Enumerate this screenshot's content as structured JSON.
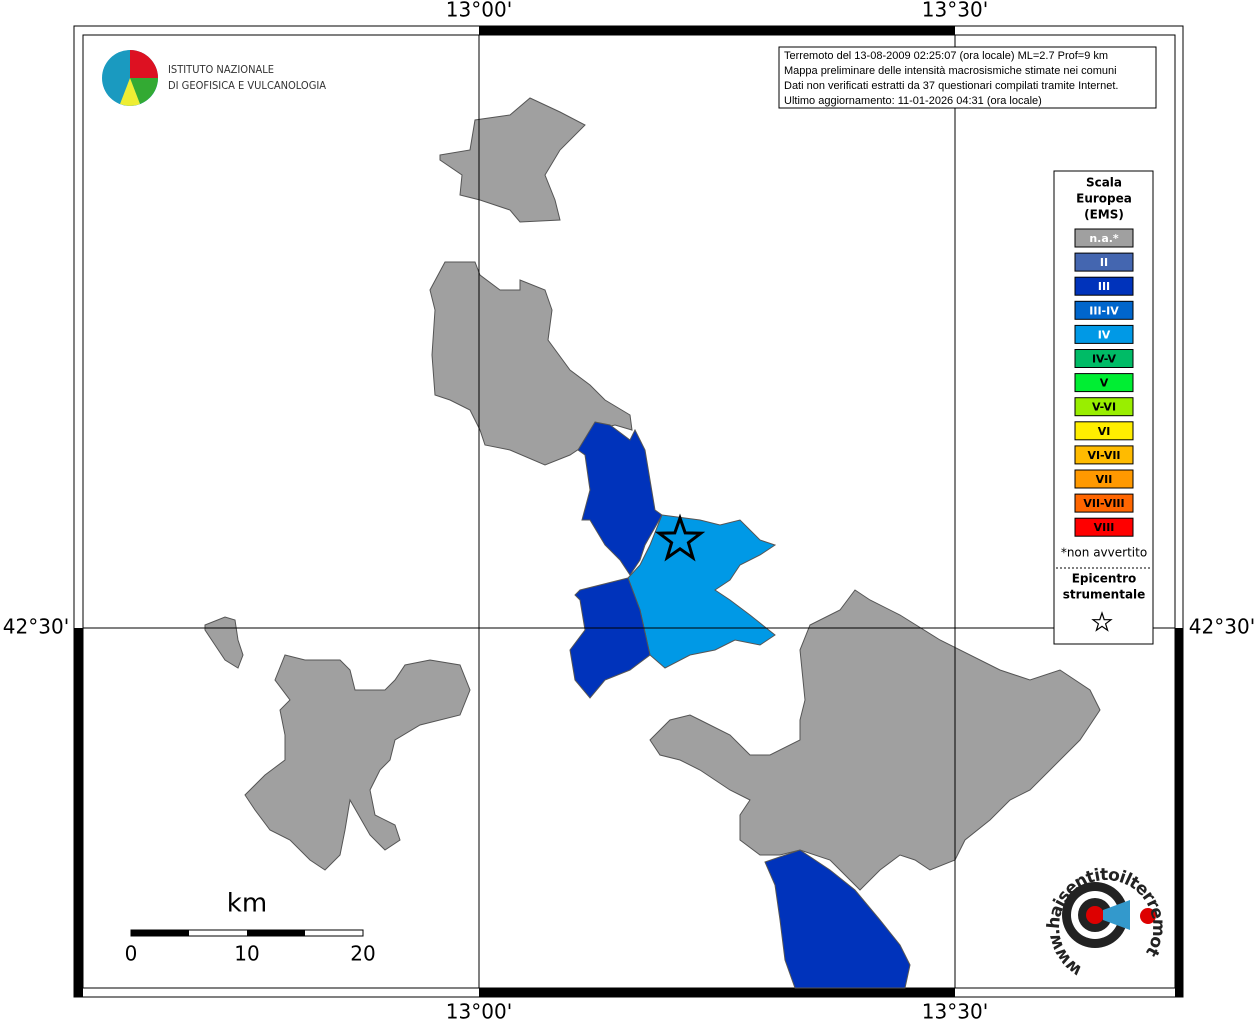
{
  "axes": {
    "lon_left": "13°00'",
    "lon_right": "13°30'",
    "lat": "42°30'"
  },
  "logo": {
    "line1": "ISTITUTO NAZIONALE",
    "line2": "DI GEOFISICA E VULCANOLOGIA"
  },
  "info": {
    "lines": [
      "Terremoto del 13-08-2009 02:25:07 (ora locale) ML=2.7 Prof=9 km",
      "Mappa preliminare delle intensità macrosismiche stimate nei comuni",
      "Dati non verificati estratti da 37 questionari compilati tramite Internet.",
      "Ultimo aggiornamento: 11-01-2026 04:31 (ora locale)"
    ]
  },
  "legend": {
    "title": [
      "Scala",
      "Europea",
      "(EMS)"
    ],
    "items": [
      {
        "label": "n.a.*",
        "color": "#a0a0a0",
        "text_color": "#ffffff"
      },
      {
        "label": "II",
        "color": "#4466b0",
        "text_color": "#ffffff"
      },
      {
        "label": "III",
        "color": "#0033bb",
        "text_color": "#ffffff"
      },
      {
        "label": "III-IV",
        "color": "#0066cc",
        "text_color": "#ffffff"
      },
      {
        "label": "IV",
        "color": "#0099e6",
        "text_color": "#ffffff"
      },
      {
        "label": "IV-V",
        "color": "#00bb66",
        "text_color": "#000000"
      },
      {
        "label": "V",
        "color": "#00ee33",
        "text_color": "#000000"
      },
      {
        "label": "V-VI",
        "color": "#99ee00",
        "text_color": "#000000"
      },
      {
        "label": "VI",
        "color": "#ffee00",
        "text_color": "#000000"
      },
      {
        "label": "VI-VII",
        "color": "#ffbb00",
        "text_color": "#000000"
      },
      {
        "label": "VII",
        "color": "#ff9900",
        "text_color": "#000000"
      },
      {
        "label": "VII-VIII",
        "color": "#ff6600",
        "text_color": "#000000"
      },
      {
        "label": "VIII",
        "color": "#ff0000",
        "text_color": "#000000"
      }
    ],
    "note": "*non avvertito",
    "epicentre": [
      "Epicentro",
      "strumentale"
    ]
  },
  "scale": {
    "unit": "km",
    "labels": [
      "0",
      "10",
      "20"
    ]
  },
  "site": "www.haisentitoilterremoto.it"
}
